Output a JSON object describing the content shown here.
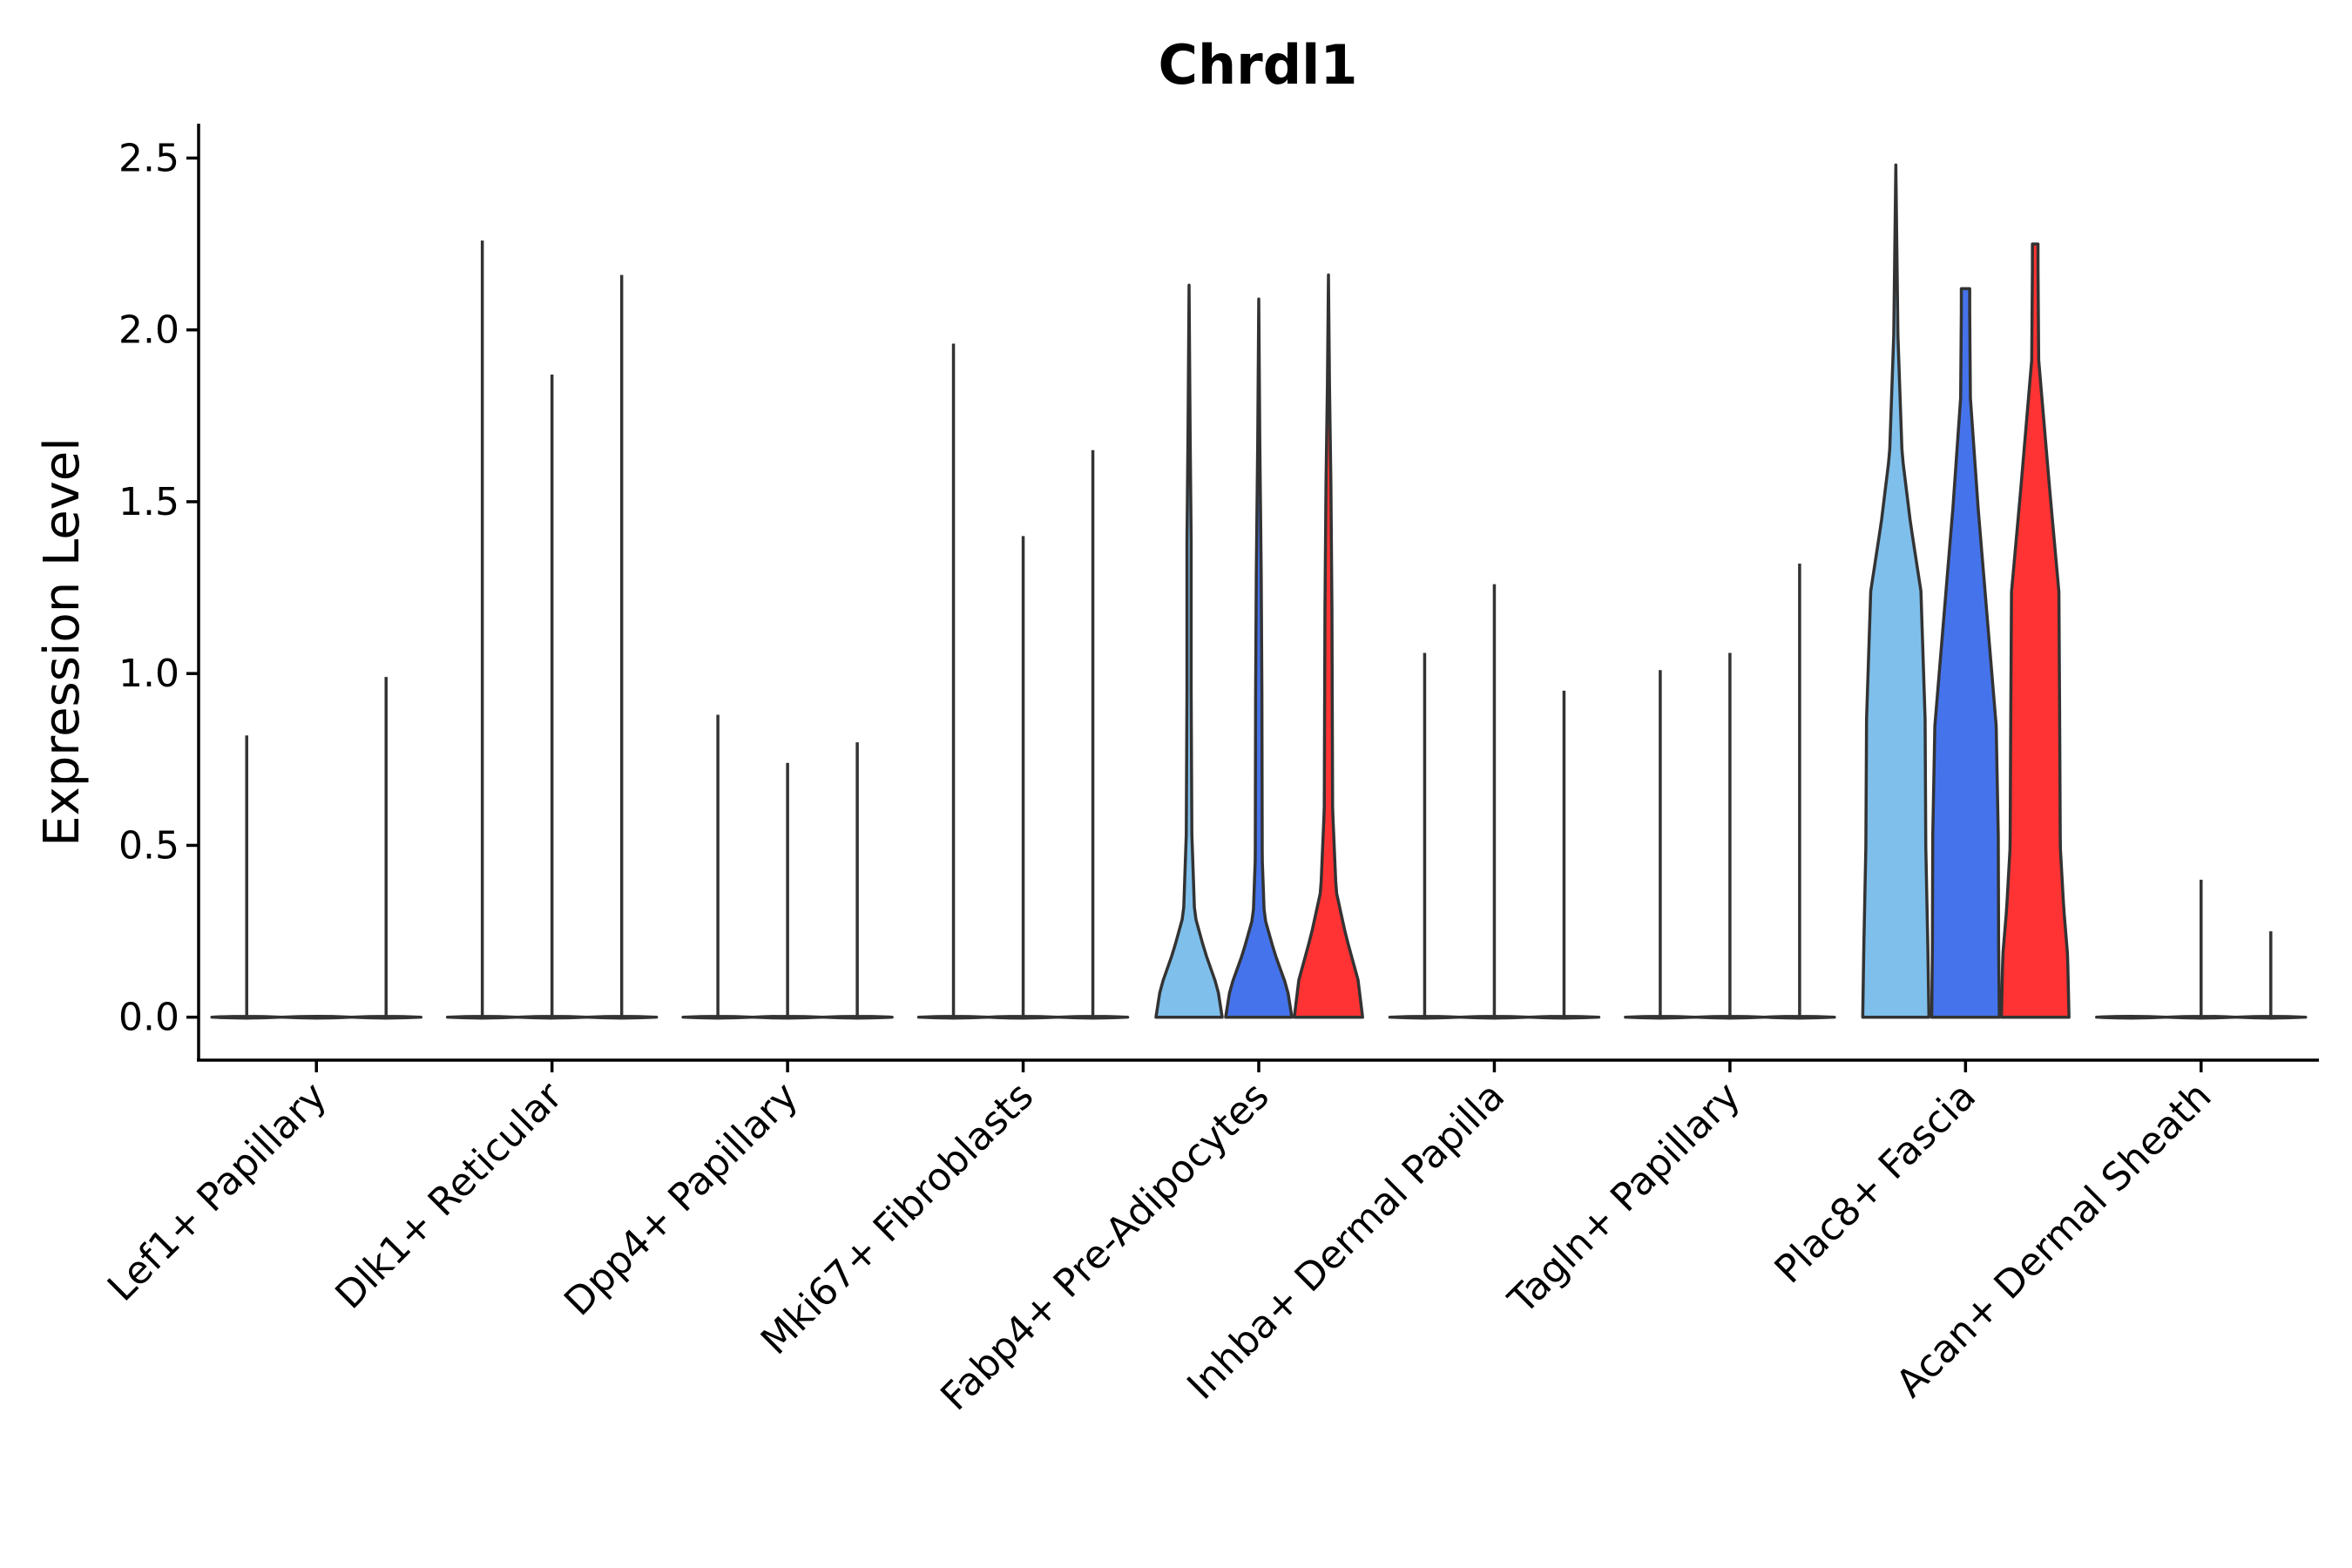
{
  "chart_data": {
    "type": "violin",
    "title": "Chrdl1",
    "xlabel": "",
    "ylabel": "Expression Level",
    "ylim": [
      -0.125,
      2.6
    ],
    "yticks": [
      "0.0",
      "0.5",
      "1.0",
      "1.5",
      "2.0",
      "2.5"
    ],
    "ytick_values": [
      0,
      0.5,
      1.0,
      1.5,
      2.0,
      2.5
    ],
    "legend": "none",
    "groups": [
      "group1",
      "group2",
      "group3"
    ],
    "group_colors": [
      "#7FBFEB",
      "#4573EB",
      "#FF3333"
    ],
    "categories": [
      {
        "name": "Lef1+ Papillary",
        "max": [
          0.82,
          0.0,
          0.99
        ],
        "shape": "line"
      },
      {
        "name": "Dlk1+ Reticular",
        "max": [
          2.26,
          1.87,
          2.16
        ],
        "shape": "line"
      },
      {
        "name": "Dpp4+ Papillary",
        "max": [
          0.88,
          0.74,
          0.8
        ],
        "shape": "line"
      },
      {
        "name": "Mki67+ Fibroblasts",
        "max": [
          1.96,
          1.4,
          1.65
        ],
        "shape": "line"
      },
      {
        "name": "Fabp4+ Pre-Adipocytes",
        "max": [
          2.13,
          2.09,
          2.16
        ],
        "shape": "violin"
      },
      {
        "name": "Inhba+ Dermal Papilla",
        "max": [
          1.06,
          1.26,
          0.95
        ],
        "shape": "line"
      },
      {
        "name": "Tagln+ Papillary",
        "max": [
          1.01,
          1.06,
          1.32
        ],
        "shape": "line"
      },
      {
        "name": "Plac8+ Fascia",
        "max": [
          2.48,
          2.12,
          2.25
        ],
        "shape": "violin"
      },
      {
        "name": "Acan+ Dermal Sheath",
        "max": [
          0.0,
          0.4,
          0.25
        ],
        "shape": "line"
      }
    ]
  }
}
